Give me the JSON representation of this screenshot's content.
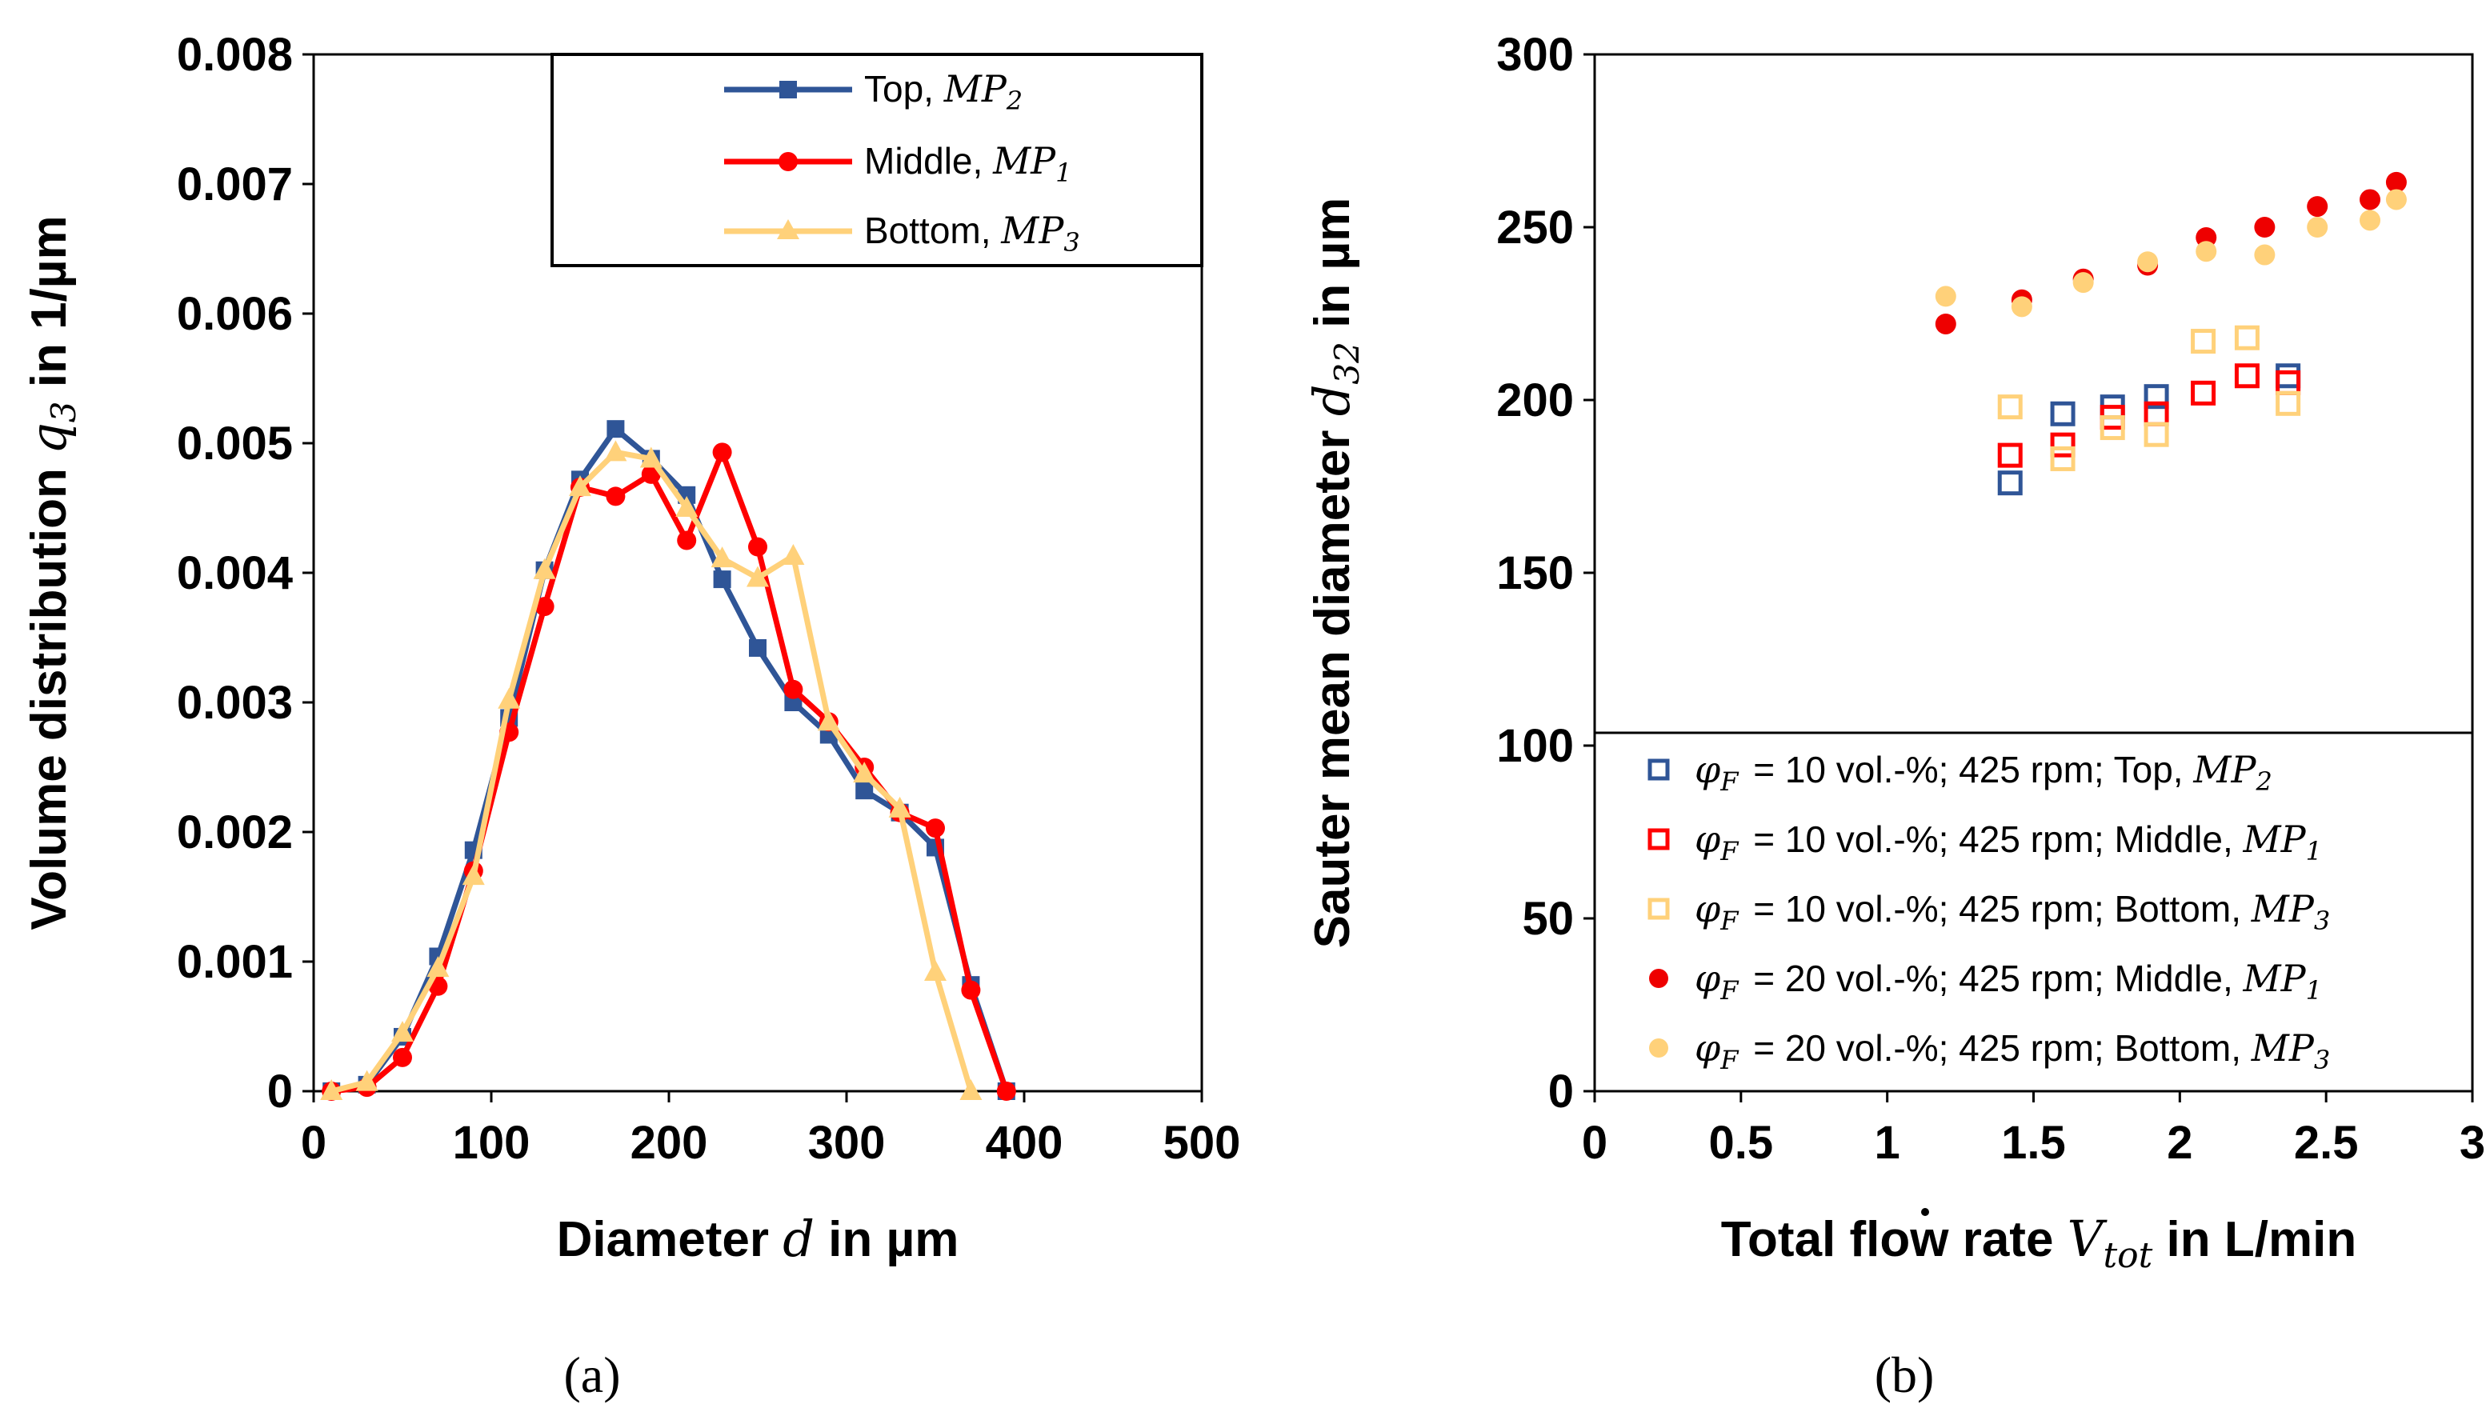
{
  "colors": {
    "top": "#2F5597",
    "middle": "#FF0000",
    "bottom": "#FFD17A",
    "middle_filled": "#EE0000",
    "bottom_filled": "#FFD17A"
  },
  "panels": {
    "a": "(a)",
    "b": "(b)"
  },
  "chart_data": [
    {
      "type": "line",
      "panel": "(a)",
      "title": "",
      "xlabel": {
        "prefix": "Diameter",
        "sym": "d",
        "suffix": "in µm"
      },
      "ylabel": {
        "prefix": "Volume distribution",
        "sym": "q",
        "sub": "3",
        "suffix": "in 1/µm"
      },
      "xlim": [
        0,
        500
      ],
      "ylim": [
        0,
        0.008
      ],
      "xticks": [
        "0",
        "100",
        "200",
        "300",
        "400",
        "500"
      ],
      "yticks": [
        "0",
        "0.001",
        "0.002",
        "0.003",
        "0.004",
        "0.005",
        "0.006",
        "0.007",
        "0.008"
      ],
      "legend_position": "top-right",
      "series": [
        {
          "name": "Top,",
          "mp": "MP",
          "mpsub": "2",
          "color": "#2F5597",
          "marker": "square",
          "x": [
            10,
            30,
            50,
            70,
            90,
            110,
            130,
            150,
            170,
            190,
            210,
            230,
            250,
            270,
            290,
            310,
            330,
            350,
            370,
            390
          ],
          "y": [
            0.0,
            5e-05,
            0.00042,
            0.00104,
            0.00186,
            0.00288,
            0.00402,
            0.00472,
            0.00511,
            0.00488,
            0.0046,
            0.00395,
            0.00342,
            0.003,
            0.00275,
            0.00232,
            0.00215,
            0.00188,
            0.00082,
            0.0
          ]
        },
        {
          "name": "Middle,",
          "mp": "MP",
          "mpsub": "1",
          "color": "#FF0000",
          "marker": "circle",
          "x": [
            10,
            30,
            50,
            70,
            90,
            110,
            130,
            150,
            170,
            190,
            210,
            230,
            250,
            270,
            290,
            310,
            330,
            350,
            370,
            390
          ],
          "y": [
            0.0,
            3e-05,
            0.00026,
            0.00081,
            0.0017,
            0.00277,
            0.00374,
            0.00466,
            0.00459,
            0.00476,
            0.00425,
            0.00493,
            0.0042,
            0.0031,
            0.00285,
            0.0025,
            0.00215,
            0.00203,
            0.00078,
            0.0
          ]
        },
        {
          "name": "Bottom,",
          "mp": "MP",
          "mpsub": "3",
          "color": "#FFD17A",
          "marker": "triangle",
          "x": [
            10,
            30,
            50,
            70,
            90,
            110,
            130,
            150,
            170,
            190,
            210,
            230,
            250,
            270,
            290,
            310,
            330,
            350,
            370
          ],
          "y": [
            0.0,
            7e-05,
            0.00045,
            0.00095,
            0.00166,
            0.00302,
            0.00402,
            0.00466,
            0.00493,
            0.00488,
            0.0045,
            0.00411,
            0.00396,
            0.00413,
            0.00285,
            0.00245,
            0.00218,
            0.00092,
            0.0
          ]
        }
      ]
    },
    {
      "type": "scatter",
      "panel": "(b)",
      "title": "",
      "xlabel": {
        "prefix": "Total flow rate",
        "sym": "V",
        "sub": "tot",
        "suffix": "in L/min"
      },
      "ylabel": {
        "prefix": "Sauter mean diameter",
        "sym": "d",
        "sub": "32",
        "suffix": "in µm"
      },
      "xlim": [
        0,
        3
      ],
      "ylim": [
        0,
        300
      ],
      "xticks": [
        "0",
        "0.5",
        "1",
        "1.5",
        "2",
        "2.5",
        "3"
      ],
      "yticks": [
        "0",
        "50",
        "100",
        "150",
        "200",
        "250",
        "300"
      ],
      "legend_position": "bottom",
      "series": [
        {
          "name": "= 10 vol.-%; 425 rpm; Top,",
          "phi": "φ",
          "phisub": "F",
          "mp": "MP",
          "mpsub": "2",
          "color": "#2F5597",
          "marker": "open-square",
          "x": [
            1.42,
            1.6,
            1.77,
            1.92,
            2.37
          ],
          "y": [
            176,
            196,
            198,
            201,
            207
          ]
        },
        {
          "name": "= 10 vol.-%; 425 rpm; Middle,",
          "phi": "φ",
          "phisub": "F",
          "mp": "MP",
          "mpsub": "1",
          "color": "#FF0000",
          "marker": "open-square",
          "x": [
            1.42,
            1.6,
            1.77,
            1.92,
            2.08,
            2.23,
            2.37
          ],
          "y": [
            184,
            187,
            195,
            196,
            202,
            207,
            205
          ]
        },
        {
          "name": "= 10 vol.-%; 425 rpm; Bottom,",
          "phi": "φ",
          "phisub": "F",
          "mp": "MP",
          "mpsub": "3",
          "color": "#FFD17A",
          "marker": "open-square",
          "x": [
            1.42,
            1.6,
            1.77,
            1.92,
            2.08,
            2.23,
            2.37
          ],
          "y": [
            198,
            183,
            192,
            190,
            217,
            218,
            199
          ]
        },
        {
          "name": "= 20 vol.-%; 425 rpm; Middle,",
          "phi": "φ",
          "phisub": "F",
          "mp": "MP",
          "mpsub": "1",
          "color": "#EE0000",
          "marker": "filled-circle",
          "x": [
            1.2,
            1.46,
            1.67,
            1.89,
            2.09,
            2.29,
            2.47,
            2.65,
            2.74
          ],
          "y": [
            222,
            229,
            235,
            239,
            247,
            250,
            256,
            258,
            263
          ]
        },
        {
          "name": "= 20 vol.-%; 425 rpm; Bottom,",
          "phi": "φ",
          "phisub": "F",
          "mp": "MP",
          "mpsub": "3",
          "color": "#FFD17A",
          "marker": "filled-circle",
          "x": [
            1.2,
            1.46,
            1.67,
            1.89,
            2.09,
            2.29,
            2.47,
            2.65,
            2.74
          ],
          "y": [
            230,
            227,
            234,
            240,
            243,
            242,
            250,
            252,
            258
          ]
        }
      ]
    }
  ]
}
